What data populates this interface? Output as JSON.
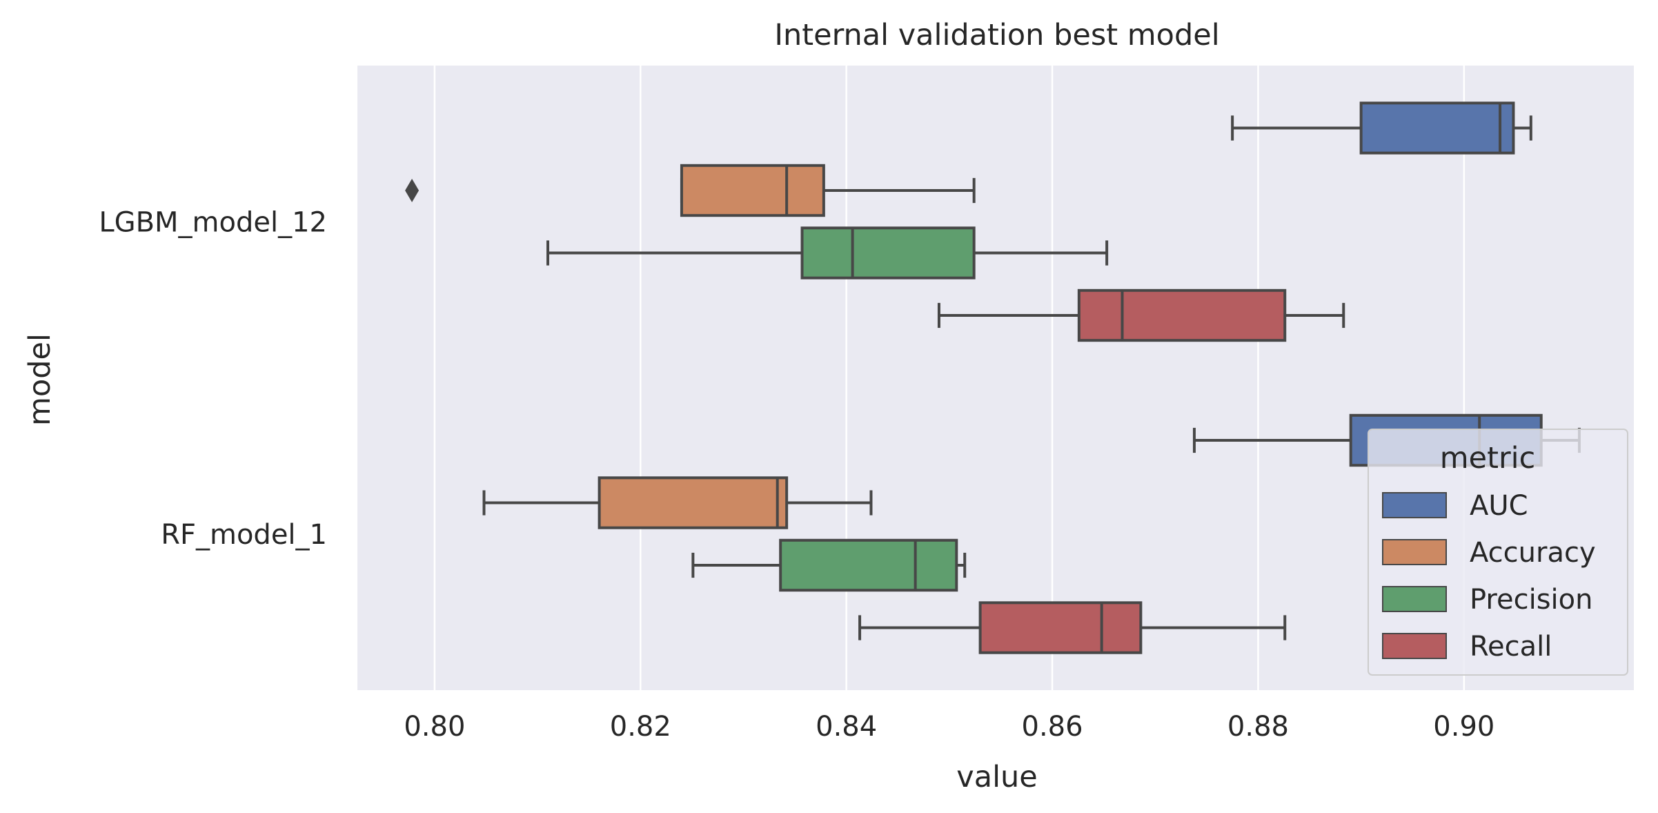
{
  "chart_data": {
    "type": "boxplot",
    "orientation": "horizontal",
    "title": "Internal validation best model",
    "xlabel": "value",
    "ylabel": "model",
    "xlim": [
      0.7925,
      0.9165
    ],
    "xticks": [
      0.8,
      0.82,
      0.84,
      0.86,
      0.88,
      0.9
    ],
    "xtick_labels": [
      "0.80",
      "0.82",
      "0.84",
      "0.86",
      "0.88",
      "0.90"
    ],
    "grid": true,
    "categories": [
      "LGBM_model_12",
      "RF_model_1"
    ],
    "legend": {
      "title": "metric",
      "placement": "lower-right"
    },
    "series": [
      {
        "name": "AUC",
        "color": "#5875ab",
        "boxes": [
          {
            "whisker_low": 0.8775,
            "q1": 0.89,
            "median": 0.9035,
            "q3": 0.9048,
            "whisker_high": 0.9065,
            "outliers": []
          },
          {
            "whisker_low": 0.8738,
            "q1": 0.889,
            "median": 0.9015,
            "q3": 0.9075,
            "whisker_high": 0.9112,
            "outliers": []
          }
        ]
      },
      {
        "name": "Accuracy",
        "color": "#cc8963",
        "boxes": [
          {
            "whisker_low": 0.824,
            "q1": 0.824,
            "median": 0.8342,
            "q3": 0.8378,
            "whisker_high": 0.8524,
            "outliers": [
              0.7978
            ]
          },
          {
            "whisker_low": 0.8048,
            "q1": 0.816,
            "median": 0.8333,
            "q3": 0.8342,
            "whisker_high": 0.8424,
            "outliers": []
          }
        ]
      },
      {
        "name": "Precision",
        "color": "#5f9e6e",
        "boxes": [
          {
            "whisker_low": 0.811,
            "q1": 0.8357,
            "median": 0.8406,
            "q3": 0.8524,
            "whisker_high": 0.8653,
            "outliers": []
          },
          {
            "whisker_low": 0.8251,
            "q1": 0.8336,
            "median": 0.8467,
            "q3": 0.8507,
            "whisker_high": 0.8515,
            "outliers": []
          }
        ]
      },
      {
        "name": "Recall",
        "color": "#b55d60",
        "boxes": [
          {
            "whisker_low": 0.849,
            "q1": 0.8626,
            "median": 0.8668,
            "q3": 0.8826,
            "whisker_high": 0.8883,
            "outliers": []
          },
          {
            "whisker_low": 0.8413,
            "q1": 0.853,
            "median": 0.8648,
            "q3": 0.8686,
            "whisker_high": 0.8826,
            "outliers": []
          }
        ]
      }
    ]
  }
}
